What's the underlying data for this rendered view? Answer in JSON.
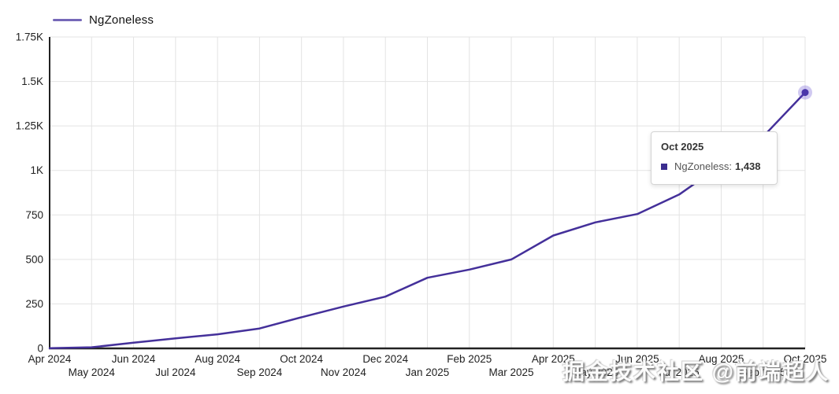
{
  "legend": {
    "series_label": "NgZoneless"
  },
  "tooltip": {
    "title": "Oct 2025",
    "series_label": "NgZoneless:",
    "value": "1,438"
  },
  "watermark": "掘金技术社区 @前端超人",
  "colors": {
    "series_line": "#44309a",
    "legend_swatch": "#7668b8",
    "dot_fill": "#4a36aa",
    "dot_halo": "rgba(98,77,209,0.30)",
    "gridline": "#e3e3e3",
    "axis_line": "#222222",
    "axis_text": "#212121",
    "tooltip_marker": "#3b2d8f"
  },
  "chart_data": {
    "type": "line",
    "title": "",
    "xlabel": "",
    "ylabel": "",
    "ylim": [
      0,
      1750
    ],
    "grid": true,
    "legend_position": "top-left",
    "categories": [
      "Apr 2024",
      "May 2024",
      "Jun 2024",
      "Jul 2024",
      "Aug 2024",
      "Sep 2024",
      "Oct 2024",
      "Nov 2024",
      "Dec 2024",
      "Jan 2025",
      "Feb 2025",
      "Mar 2025",
      "Apr 2025",
      "May 2025",
      "Jun 2025",
      "Jul 2025",
      "Aug 2025",
      "Sep 2025",
      "Oct 2025"
    ],
    "y_tick_labels": [
      "0",
      "250",
      "500",
      "750",
      "1K",
      "1.25K",
      "1.5K",
      "1.75K"
    ],
    "y_tick_values": [
      0,
      250,
      500,
      750,
      1000,
      1250,
      1500,
      1750
    ],
    "series": [
      {
        "name": "NgZoneless",
        "color": "#44309a",
        "values": [
          1,
          6,
          32,
          56,
          79,
          112,
          175,
          235,
          291,
          397,
          443,
          500,
          634,
          708,
          755,
          865,
          1030,
          1190,
          1438
        ]
      }
    ],
    "last_point": {
      "category": "Oct 2025",
      "value": 1438
    }
  }
}
